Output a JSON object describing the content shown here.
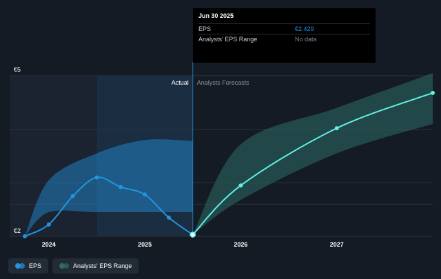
{
  "chart_data": {
    "type": "line",
    "y_axis_labels": [
      "€5",
      "€2"
    ],
    "ylim": [
      2,
      5
    ],
    "x_tick_labels": [
      "2024",
      "2025",
      "2026",
      "2027"
    ],
    "x_ticks": [
      2024.0,
      2025.0,
      2026.0,
      2027.0
    ],
    "xlim": [
      2023.75,
      2028.0
    ],
    "divider_x": 2025.5,
    "highlight_start": 2024.5,
    "region_labels": {
      "actual": "Actual",
      "forecast": "Analysts Forecasts"
    },
    "series": [
      {
        "name": "EPS",
        "color": "#2394df",
        "x": [
          2023.75,
          2024.0,
          2024.25,
          2024.5,
          2024.75,
          2025.0,
          2025.25,
          2025.5
        ],
        "values": [
          2.0,
          2.22,
          2.75,
          3.1,
          2.92,
          2.78,
          2.35,
          2.03
        ]
      },
      {
        "name": "EPS forecast",
        "color": "#5ff0e6",
        "x": [
          2025.5,
          2026.0,
          2027.0,
          2028.0
        ],
        "values": [
          2.03,
          2.95,
          4.02,
          4.68
        ]
      }
    ],
    "ranges": [
      {
        "name": "Analysts' EPS Range (historical)",
        "color": "#2394df",
        "x": [
          2023.75,
          2024.0,
          2024.5,
          2025.0,
          2025.5
        ],
        "upper": [
          2.0,
          3.05,
          3.55,
          3.8,
          3.78
        ],
        "lower": [
          2.0,
          2.45,
          2.45,
          2.45,
          2.45
        ]
      },
      {
        "name": "Analysts' EPS Range",
        "color": "#2e6b66",
        "x": [
          2025.5,
          2026.0,
          2027.0,
          2028.0
        ],
        "upper": [
          2.03,
          3.72,
          4.4,
          5.05
        ],
        "lower": [
          2.03,
          2.68,
          3.55,
          4.1
        ]
      }
    ]
  },
  "tooltip": {
    "date": "Jun 30 2025",
    "rows": [
      {
        "label": "EPS",
        "value": "€2.429"
      },
      {
        "label": "Analysts' EPS Range",
        "value": "No data"
      }
    ]
  },
  "legend": {
    "items": [
      {
        "label": "EPS",
        "color": "#2394df"
      },
      {
        "label": "Analysts' EPS Range",
        "color": "#2e6b66"
      }
    ]
  }
}
